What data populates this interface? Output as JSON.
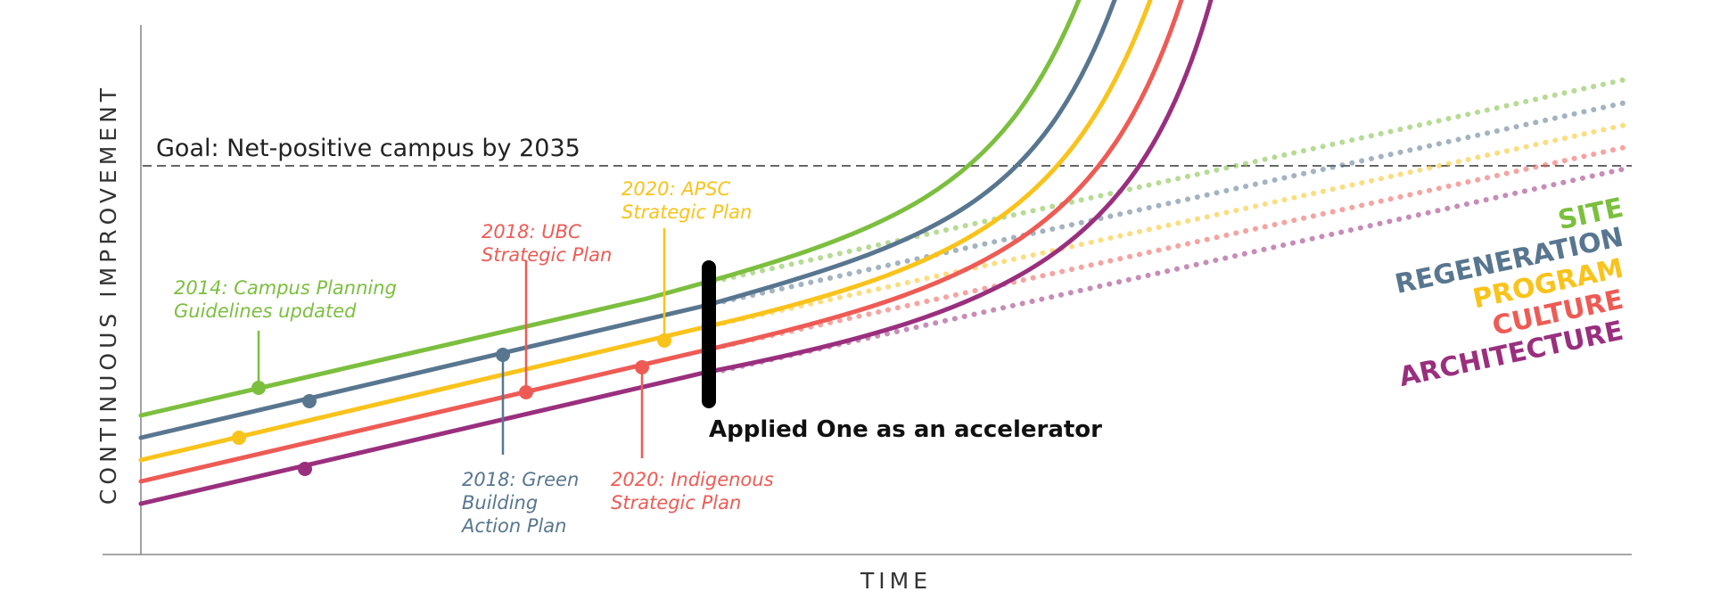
{
  "diagram": {
    "y_axis_label": "CONTINUOUS IMPROVEMENT",
    "x_axis_label": "TIME",
    "goal_label": "Goal: Net-positive campus by 2035",
    "accelerator_label": "Applied One as an accelerator"
  },
  "series": [
    {
      "name": "SITE",
      "color": "#7cbf3f"
    },
    {
      "name": "REGENERATION",
      "color": "#58768f"
    },
    {
      "name": "PROGRAM",
      "color": "#f9c31b"
    },
    {
      "name": "CULTURE",
      "color": "#ee5b55"
    },
    {
      "name": "ARCHITECTURE",
      "color": "#9a2f7e"
    }
  ],
  "milestones": [
    {
      "series": "SITE",
      "lines": [
        "2014: Campus Planning",
        "Guidelines updated"
      ]
    },
    {
      "series": "REGENERATION",
      "lines": [
        "2018: Green",
        "Building",
        "Action Plan"
      ]
    },
    {
      "series": "CULTURE",
      "lines": [
        "2018: UBC",
        "Strategic Plan"
      ]
    },
    {
      "series": "PROGRAM",
      "lines": [
        "2020: APSC",
        "Strategic Plan"
      ]
    },
    {
      "series": "CULTURE",
      "lines": [
        "2020: Indigenous",
        "Strategic Plan"
      ]
    }
  ]
}
